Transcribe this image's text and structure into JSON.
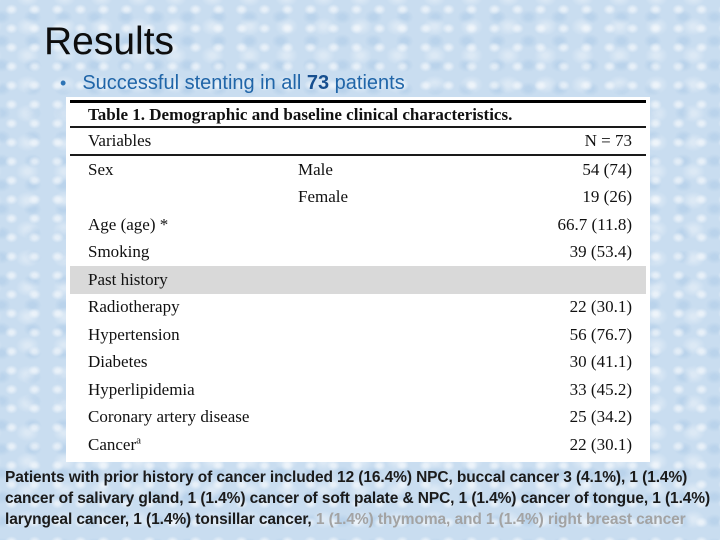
{
  "slide": {
    "title": "Results",
    "bullet": {
      "marker": "•",
      "pre": "Successful stenting in all ",
      "number": "73",
      "post": " patients"
    }
  },
  "table": {
    "caption": "Table 1. Demographic and baseline clinical characteristics.",
    "header": {
      "variables": "Variables",
      "n": "N = 73"
    },
    "rows": [
      {
        "label": "Sex",
        "sub": "Male",
        "value": "54 (74)"
      },
      {
        "label": "",
        "sub": "Female",
        "value": "19 (26)"
      },
      {
        "label": "Age (age) *",
        "sub": "",
        "value": "66.7 (11.8)"
      },
      {
        "label": "Smoking",
        "sub": "",
        "value": "39 (53.4)"
      },
      {
        "label": "Past history",
        "sub": "",
        "value": ""
      },
      {
        "label": "Radiotherapy",
        "sub": "",
        "value": "22 (30.1)"
      },
      {
        "label": "Hypertension",
        "sub": "",
        "value": "56 (76.7)"
      },
      {
        "label": "Diabetes",
        "sub": "",
        "value": "30 (41.1)"
      },
      {
        "label": "Hyperlipidemia",
        "sub": "",
        "value": "33 (45.2)"
      },
      {
        "label": "Coronary artery disease",
        "sub": "",
        "value": "25 (34.2)"
      },
      {
        "label": "Cancer",
        "sup": "a",
        "sub": "",
        "value": "22 (30.1)"
      }
    ]
  },
  "footer": {
    "main": "Patients with prior history of cancer included 12 (16.4%) NPC, buccal cancer 3 (4.1%), 1 (1.4%) cancer of salivary gland, 1 (1.4%) cancer of soft palate & NPC, 1 (1.4%) cancer of tongue, 1 (1.4%) laryngeal cancer, 1 (1.4%) tonsillar cancer, ",
    "muted": "1 (1.4%) thymoma, and 1 (1.4%) right breast cancer"
  },
  "colors": {
    "accent_blue": "#2065a8",
    "dark_navy": "#174f8f",
    "muted_gray": "#a3a3a3",
    "row_shade": "#d9d9d9",
    "background": "#c9ddf0"
  }
}
